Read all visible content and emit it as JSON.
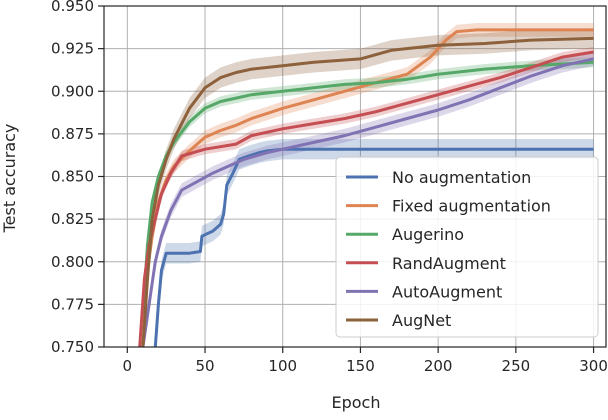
{
  "chart_data": {
    "type": "line",
    "title": "",
    "xlabel": "Epoch",
    "ylabel": "Test accuracy",
    "xlim": [
      -15,
      308
    ],
    "ylim": [
      0.75,
      0.95
    ],
    "xticks": [
      0,
      50,
      100,
      150,
      200,
      250,
      300
    ],
    "xtick_labels": [
      "0",
      "50",
      "100",
      "150",
      "200",
      "250",
      "300"
    ],
    "yticks": [
      0.75,
      0.775,
      0.8,
      0.825,
      0.85,
      0.875,
      0.9,
      0.925,
      0.95
    ],
    "ytick_labels": [
      "0.750",
      "0.775",
      "0.800",
      "0.825",
      "0.850",
      "0.875",
      "0.900",
      "0.925",
      "0.950"
    ],
    "grid": true,
    "legend_position": "bottom-right",
    "series": [
      {
        "name": "No augmentation",
        "color": "#4c72b0",
        "band": 0.006,
        "points": [
          [
            18,
            0.75
          ],
          [
            20,
            0.775
          ],
          [
            22,
            0.795
          ],
          [
            25,
            0.805
          ],
          [
            30,
            0.805
          ],
          [
            40,
            0.805
          ],
          [
            47,
            0.806
          ],
          [
            48,
            0.815
          ],
          [
            55,
            0.818
          ],
          [
            60,
            0.822
          ],
          [
            62,
            0.828
          ],
          [
            64,
            0.845
          ],
          [
            68,
            0.852
          ],
          [
            72,
            0.86
          ],
          [
            78,
            0.862
          ],
          [
            85,
            0.864
          ],
          [
            90,
            0.865
          ],
          [
            100,
            0.866
          ],
          [
            150,
            0.866
          ],
          [
            200,
            0.866
          ],
          [
            250,
            0.866
          ],
          [
            300,
            0.866
          ]
        ]
      },
      {
        "name": "Fixed augmentation",
        "color": "#dd8452",
        "band": 0.004,
        "points": [
          [
            10,
            0.75
          ],
          [
            13,
            0.795
          ],
          [
            16,
            0.815
          ],
          [
            20,
            0.835
          ],
          [
            25,
            0.848
          ],
          [
            30,
            0.856
          ],
          [
            40,
            0.865
          ],
          [
            50,
            0.873
          ],
          [
            60,
            0.877
          ],
          [
            70,
            0.88
          ],
          [
            80,
            0.884
          ],
          [
            90,
            0.887
          ],
          [
            100,
            0.89
          ],
          [
            120,
            0.895
          ],
          [
            140,
            0.9
          ],
          [
            160,
            0.905
          ],
          [
            180,
            0.91
          ],
          [
            195,
            0.92
          ],
          [
            205,
            0.93
          ],
          [
            212,
            0.935
          ],
          [
            225,
            0.936
          ],
          [
            250,
            0.936
          ],
          [
            275,
            0.936
          ],
          [
            300,
            0.936
          ]
        ]
      },
      {
        "name": "Augerino",
        "color": "#55a868",
        "band": 0.003,
        "points": [
          [
            10,
            0.77
          ],
          [
            13,
            0.81
          ],
          [
            16,
            0.835
          ],
          [
            20,
            0.85
          ],
          [
            25,
            0.862
          ],
          [
            30,
            0.87
          ],
          [
            40,
            0.882
          ],
          [
            50,
            0.89
          ],
          [
            60,
            0.894
          ],
          [
            70,
            0.896
          ],
          [
            80,
            0.898
          ],
          [
            100,
            0.9
          ],
          [
            120,
            0.902
          ],
          [
            140,
            0.904
          ],
          [
            160,
            0.905
          ],
          [
            180,
            0.907
          ],
          [
            200,
            0.91
          ],
          [
            230,
            0.913
          ],
          [
            260,
            0.915
          ],
          [
            300,
            0.917
          ]
        ]
      },
      {
        "name": "RandAugment",
        "color": "#c44e52",
        "band": 0.003,
        "points": [
          [
            8,
            0.75
          ],
          [
            11,
            0.79
          ],
          [
            14,
            0.81
          ],
          [
            18,
            0.825
          ],
          [
            22,
            0.84
          ],
          [
            28,
            0.852
          ],
          [
            35,
            0.862
          ],
          [
            50,
            0.866
          ],
          [
            70,
            0.869
          ],
          [
            80,
            0.874
          ],
          [
            90,
            0.876
          ],
          [
            100,
            0.878
          ],
          [
            120,
            0.881
          ],
          [
            140,
            0.884
          ],
          [
            160,
            0.888
          ],
          [
            180,
            0.893
          ],
          [
            200,
            0.898
          ],
          [
            220,
            0.903
          ],
          [
            240,
            0.908
          ],
          [
            260,
            0.914
          ],
          [
            280,
            0.92
          ],
          [
            300,
            0.923
          ]
        ]
      },
      {
        "name": "AutoAugment",
        "color": "#8172b3",
        "band": 0.004,
        "points": [
          [
            10,
            0.75
          ],
          [
            14,
            0.775
          ],
          [
            18,
            0.8
          ],
          [
            22,
            0.815
          ],
          [
            28,
            0.83
          ],
          [
            35,
            0.842
          ],
          [
            45,
            0.847
          ],
          [
            55,
            0.852
          ],
          [
            65,
            0.856
          ],
          [
            75,
            0.86
          ],
          [
            90,
            0.864
          ],
          [
            100,
            0.866
          ],
          [
            120,
            0.87
          ],
          [
            140,
            0.874
          ],
          [
            160,
            0.879
          ],
          [
            180,
            0.884
          ],
          [
            200,
            0.889
          ],
          [
            220,
            0.895
          ],
          [
            240,
            0.902
          ],
          [
            260,
            0.909
          ],
          [
            280,
            0.915
          ],
          [
            300,
            0.919
          ]
        ]
      },
      {
        "name": "AugNet",
        "color": "#8c613c",
        "band": 0.006,
        "points": [
          [
            10,
            0.75
          ],
          [
            13,
            0.79
          ],
          [
            16,
            0.825
          ],
          [
            20,
            0.845
          ],
          [
            25,
            0.86
          ],
          [
            30,
            0.872
          ],
          [
            40,
            0.89
          ],
          [
            50,
            0.902
          ],
          [
            60,
            0.908
          ],
          [
            70,
            0.911
          ],
          [
            80,
            0.913
          ],
          [
            100,
            0.915
          ],
          [
            120,
            0.917
          ],
          [
            150,
            0.919
          ],
          [
            170,
            0.924
          ],
          [
            200,
            0.927
          ],
          [
            230,
            0.928
          ],
          [
            260,
            0.93
          ],
          [
            300,
            0.931
          ]
        ]
      }
    ]
  }
}
